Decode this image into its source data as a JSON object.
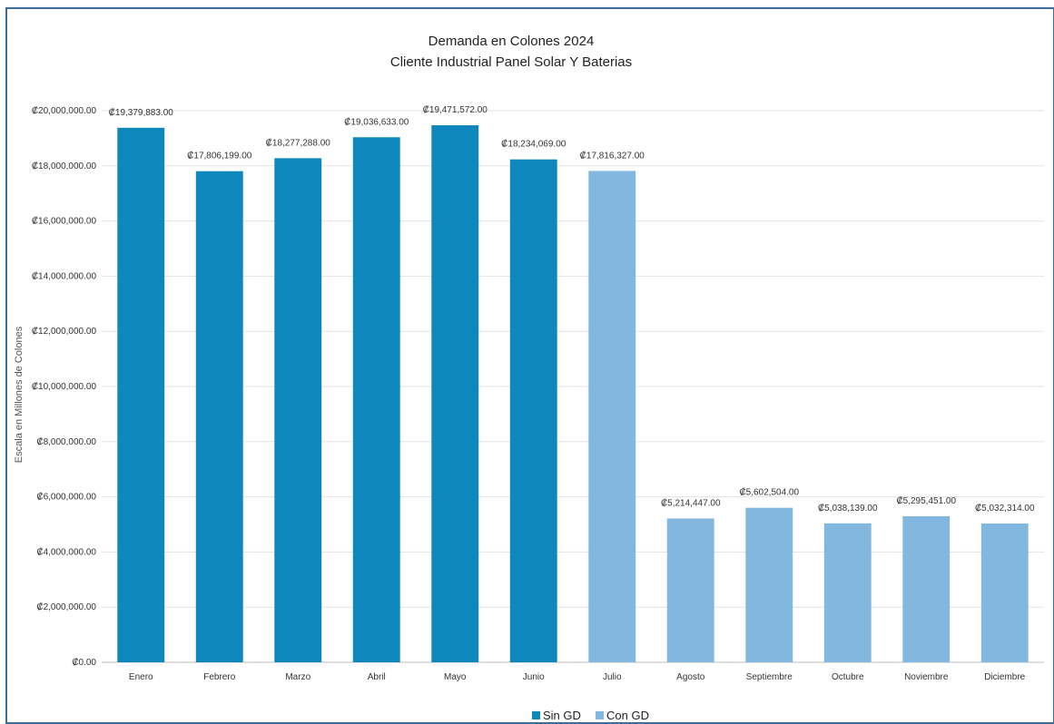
{
  "chart_data": {
    "type": "bar",
    "title": "Demanda en Colones 2024",
    "subtitle": "Cliente Industrial Panel Solar Y Baterias",
    "ylabel": "Escala en Millones de Colones",
    "ylim": [
      0,
      20000000
    ],
    "yticks": [
      "₡0.00",
      "₡2,000,000.00",
      "₡4,000,000.00",
      "₡6,000,000.00",
      "₡8,000,000.00",
      "₡10,000,000.00",
      "₡12,000,000.00",
      "₡14,000,000.00",
      "₡16,000,000.00",
      "₡18,000,000.00",
      "₡20,000,000.00"
    ],
    "ytick_values": [
      0,
      2000000,
      4000000,
      6000000,
      8000000,
      10000000,
      12000000,
      14000000,
      16000000,
      18000000,
      20000000
    ],
    "grid": true,
    "legend_position": "bottom",
    "categories": [
      "Enero",
      "Febrero",
      "Marzo",
      "Abril",
      "Mayo",
      "Junio",
      "Julio",
      "Agosto",
      "Septiembre",
      "Octubre",
      "Noviembre",
      "Diciembre"
    ],
    "series": [
      {
        "name": "Sin GD",
        "color": "#0e87bd",
        "values": [
          19379883,
          17806199,
          18277288,
          19036633,
          19471572,
          18234069,
          null,
          null,
          null,
          null,
          null,
          null
        ],
        "labels": [
          "₡19,379,883.00",
          "₡17,806,199.00",
          "₡18,277,288.00",
          "₡19,036,633.00",
          "₡19,471,572.00",
          "₡18,234,069.00",
          null,
          null,
          null,
          null,
          null,
          null
        ]
      },
      {
        "name": "Con GD",
        "color": "#82b8df",
        "values": [
          null,
          null,
          null,
          null,
          null,
          null,
          17816327,
          5214447,
          5602504,
          5038139,
          5295451,
          5032314
        ],
        "labels": [
          null,
          null,
          null,
          null,
          null,
          null,
          "₡17,816,327.00",
          "₡5,214,447.00",
          "₡5,602,504.00",
          "₡5,038,139.00",
          "₡5,295,451.00",
          "₡5,032,314.00"
        ]
      }
    ]
  }
}
